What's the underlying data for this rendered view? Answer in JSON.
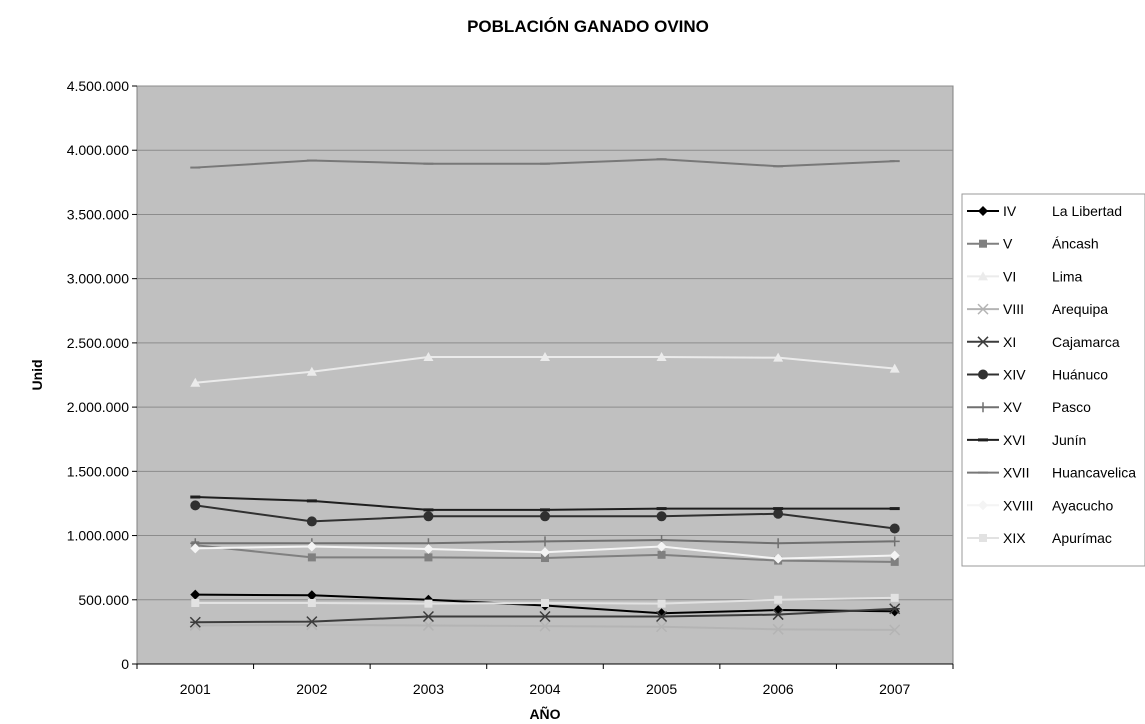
{
  "chart_data": {
    "type": "line",
    "title": "POBLACIÓN GANADO OVINO",
    "xlabel": "AÑO",
    "ylabel": "Unid",
    "ylim": [
      0,
      4500000
    ],
    "y_ticks": [
      0,
      500000,
      1000000,
      1500000,
      2000000,
      2500000,
      3000000,
      3500000,
      4000000,
      4500000
    ],
    "y_tick_labels": [
      "0",
      "500.000",
      "1.000.000",
      "1.500.000",
      "2.000.000",
      "2.500.000",
      "3.000.000",
      "3.500.000",
      "4.000.000",
      "4.500.000"
    ],
    "categories": [
      "2001",
      "2002",
      "2003",
      "2004",
      "2005",
      "2006",
      "2007"
    ],
    "grid": "horizontal",
    "legend_position": "right",
    "plot_background": "#c0c0c0",
    "series": [
      {
        "code": "IV",
        "name": "La Libertad",
        "color": "#000000",
        "marker": "diamond",
        "values": [
          540000,
          535000,
          500000,
          455000,
          395000,
          420000,
          410000
        ]
      },
      {
        "code": "V",
        "name": "Áncash",
        "color": "#808080",
        "marker": "square",
        "values": [
          925000,
          830000,
          830000,
          825000,
          850000,
          805000,
          795000
        ]
      },
      {
        "code": "VI",
        "name": "Lima",
        "color": "#ebebeb",
        "marker": "triangle",
        "values": [
          2190000,
          2275000,
          2390000,
          2390000,
          2390000,
          2385000,
          2300000
        ]
      },
      {
        "code": "VIII",
        "name": "Arequipa",
        "color": "#b4b4b4",
        "marker": "x",
        "values": [
          300000,
          305000,
          300000,
          295000,
          290000,
          270000,
          265000
        ]
      },
      {
        "code": "XI",
        "name": "Cajamarca",
        "color": "#3c3c3c",
        "marker": "star",
        "values": [
          325000,
          330000,
          370000,
          370000,
          370000,
          385000,
          430000
        ]
      },
      {
        "code": "XIV",
        "name": "Huánuco",
        "color": "#303030",
        "marker": "circle",
        "values": [
          1235000,
          1110000,
          1150000,
          1150000,
          1150000,
          1170000,
          1055000
        ]
      },
      {
        "code": "XV",
        "name": "Pasco",
        "color": "#707070",
        "marker": "plus",
        "values": [
          940000,
          940000,
          940000,
          955000,
          965000,
          940000,
          955000
        ]
      },
      {
        "code": "XVI",
        "name": "Junín",
        "color": "#1e1e1e",
        "marker": "dash",
        "values": [
          1300000,
          1270000,
          1200000,
          1200000,
          1210000,
          1210000,
          1210000
        ]
      },
      {
        "code": "XVII",
        "name": "Huancavelica",
        "color": "#787878",
        "marker": "hline",
        "values": [
          3865000,
          3920000,
          3895000,
          3895000,
          3930000,
          3875000,
          3915000
        ]
      },
      {
        "code": "XVIII",
        "name": "Ayacucho",
        "color": "#f4f4f4",
        "marker": "diamond",
        "values": [
          900000,
          915000,
          895000,
          870000,
          915000,
          820000,
          845000
        ]
      },
      {
        "code": "XIX",
        "name": "Apurímac",
        "color": "#e2e2e2",
        "marker": "square",
        "values": [
          475000,
          475000,
          470000,
          475000,
          470000,
          500000,
          515000
        ]
      }
    ]
  }
}
